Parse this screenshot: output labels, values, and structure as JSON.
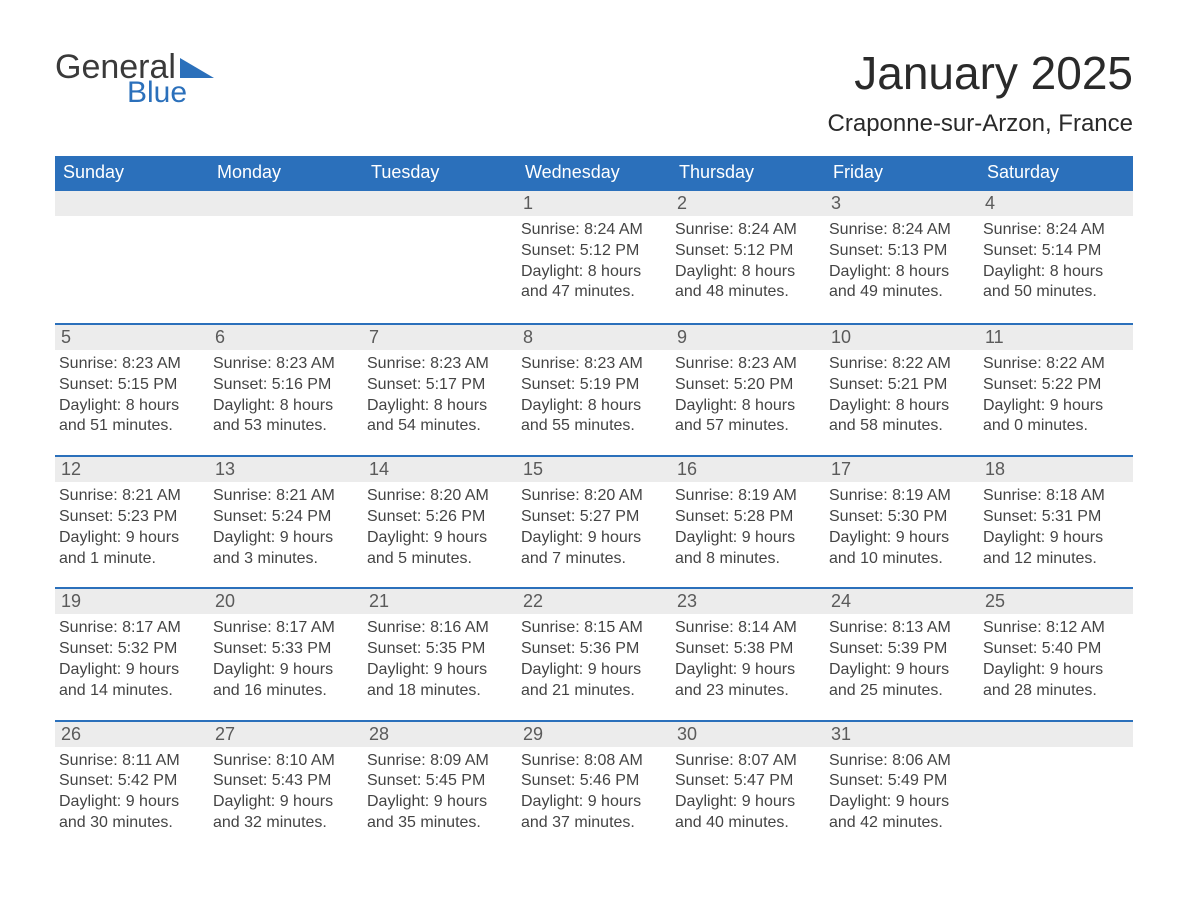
{
  "branding": {
    "logo_general": "General",
    "logo_blue": "Blue",
    "logo_color_general": "#3a3a3a",
    "logo_color_blue": "#2b70bb",
    "logo_triangle_color": "#2b70bb"
  },
  "header": {
    "title": "January 2025",
    "subtitle": "Craponne-sur-Arzon, France"
  },
  "styling": {
    "header_bg": "#2b70bb",
    "header_text": "#ffffff",
    "daynum_bg": "#ececec",
    "daynum_border": "#2b70bb",
    "daynum_text": "#5a5a5a",
    "body_text": "#444444",
    "page_bg": "#ffffff",
    "header_fontsize_pt": 14,
    "title_fontsize_pt": 34,
    "subtitle_fontsize_pt": 18,
    "cell_fontsize_pt": 12
  },
  "calendar": {
    "day_names": [
      "Sunday",
      "Monday",
      "Tuesday",
      "Wednesday",
      "Thursday",
      "Friday",
      "Saturday"
    ],
    "weeks": [
      [
        {
          "day": "",
          "sunrise": "",
          "sunset": "",
          "daylight": ""
        },
        {
          "day": "",
          "sunrise": "",
          "sunset": "",
          "daylight": ""
        },
        {
          "day": "",
          "sunrise": "",
          "sunset": "",
          "daylight": ""
        },
        {
          "day": "1",
          "sunrise": "Sunrise: 8:24 AM",
          "sunset": "Sunset: 5:12 PM",
          "daylight": "Daylight: 8 hours and 47 minutes."
        },
        {
          "day": "2",
          "sunrise": "Sunrise: 8:24 AM",
          "sunset": "Sunset: 5:12 PM",
          "daylight": "Daylight: 8 hours and 48 minutes."
        },
        {
          "day": "3",
          "sunrise": "Sunrise: 8:24 AM",
          "sunset": "Sunset: 5:13 PM",
          "daylight": "Daylight: 8 hours and 49 minutes."
        },
        {
          "day": "4",
          "sunrise": "Sunrise: 8:24 AM",
          "sunset": "Sunset: 5:14 PM",
          "daylight": "Daylight: 8 hours and 50 minutes."
        }
      ],
      [
        {
          "day": "5",
          "sunrise": "Sunrise: 8:23 AM",
          "sunset": "Sunset: 5:15 PM",
          "daylight": "Daylight: 8 hours and 51 minutes."
        },
        {
          "day": "6",
          "sunrise": "Sunrise: 8:23 AM",
          "sunset": "Sunset: 5:16 PM",
          "daylight": "Daylight: 8 hours and 53 minutes."
        },
        {
          "day": "7",
          "sunrise": "Sunrise: 8:23 AM",
          "sunset": "Sunset: 5:17 PM",
          "daylight": "Daylight: 8 hours and 54 minutes."
        },
        {
          "day": "8",
          "sunrise": "Sunrise: 8:23 AM",
          "sunset": "Sunset: 5:19 PM",
          "daylight": "Daylight: 8 hours and 55 minutes."
        },
        {
          "day": "9",
          "sunrise": "Sunrise: 8:23 AM",
          "sunset": "Sunset: 5:20 PM",
          "daylight": "Daylight: 8 hours and 57 minutes."
        },
        {
          "day": "10",
          "sunrise": "Sunrise: 8:22 AM",
          "sunset": "Sunset: 5:21 PM",
          "daylight": "Daylight: 8 hours and 58 minutes."
        },
        {
          "day": "11",
          "sunrise": "Sunrise: 8:22 AM",
          "sunset": "Sunset: 5:22 PM",
          "daylight": "Daylight: 9 hours and 0 minutes."
        }
      ],
      [
        {
          "day": "12",
          "sunrise": "Sunrise: 8:21 AM",
          "sunset": "Sunset: 5:23 PM",
          "daylight": "Daylight: 9 hours and 1 minute."
        },
        {
          "day": "13",
          "sunrise": "Sunrise: 8:21 AM",
          "sunset": "Sunset: 5:24 PM",
          "daylight": "Daylight: 9 hours and 3 minutes."
        },
        {
          "day": "14",
          "sunrise": "Sunrise: 8:20 AM",
          "sunset": "Sunset: 5:26 PM",
          "daylight": "Daylight: 9 hours and 5 minutes."
        },
        {
          "day": "15",
          "sunrise": "Sunrise: 8:20 AM",
          "sunset": "Sunset: 5:27 PM",
          "daylight": "Daylight: 9 hours and 7 minutes."
        },
        {
          "day": "16",
          "sunrise": "Sunrise: 8:19 AM",
          "sunset": "Sunset: 5:28 PM",
          "daylight": "Daylight: 9 hours and 8 minutes."
        },
        {
          "day": "17",
          "sunrise": "Sunrise: 8:19 AM",
          "sunset": "Sunset: 5:30 PM",
          "daylight": "Daylight: 9 hours and 10 minutes."
        },
        {
          "day": "18",
          "sunrise": "Sunrise: 8:18 AM",
          "sunset": "Sunset: 5:31 PM",
          "daylight": "Daylight: 9 hours and 12 minutes."
        }
      ],
      [
        {
          "day": "19",
          "sunrise": "Sunrise: 8:17 AM",
          "sunset": "Sunset: 5:32 PM",
          "daylight": "Daylight: 9 hours and 14 minutes."
        },
        {
          "day": "20",
          "sunrise": "Sunrise: 8:17 AM",
          "sunset": "Sunset: 5:33 PM",
          "daylight": "Daylight: 9 hours and 16 minutes."
        },
        {
          "day": "21",
          "sunrise": "Sunrise: 8:16 AM",
          "sunset": "Sunset: 5:35 PM",
          "daylight": "Daylight: 9 hours and 18 minutes."
        },
        {
          "day": "22",
          "sunrise": "Sunrise: 8:15 AM",
          "sunset": "Sunset: 5:36 PM",
          "daylight": "Daylight: 9 hours and 21 minutes."
        },
        {
          "day": "23",
          "sunrise": "Sunrise: 8:14 AM",
          "sunset": "Sunset: 5:38 PM",
          "daylight": "Daylight: 9 hours and 23 minutes."
        },
        {
          "day": "24",
          "sunrise": "Sunrise: 8:13 AM",
          "sunset": "Sunset: 5:39 PM",
          "daylight": "Daylight: 9 hours and 25 minutes."
        },
        {
          "day": "25",
          "sunrise": "Sunrise: 8:12 AM",
          "sunset": "Sunset: 5:40 PM",
          "daylight": "Daylight: 9 hours and 28 minutes."
        }
      ],
      [
        {
          "day": "26",
          "sunrise": "Sunrise: 8:11 AM",
          "sunset": "Sunset: 5:42 PM",
          "daylight": "Daylight: 9 hours and 30 minutes."
        },
        {
          "day": "27",
          "sunrise": "Sunrise: 8:10 AM",
          "sunset": "Sunset: 5:43 PM",
          "daylight": "Daylight: 9 hours and 32 minutes."
        },
        {
          "day": "28",
          "sunrise": "Sunrise: 8:09 AM",
          "sunset": "Sunset: 5:45 PM",
          "daylight": "Daylight: 9 hours and 35 minutes."
        },
        {
          "day": "29",
          "sunrise": "Sunrise: 8:08 AM",
          "sunset": "Sunset: 5:46 PM",
          "daylight": "Daylight: 9 hours and 37 minutes."
        },
        {
          "day": "30",
          "sunrise": "Sunrise: 8:07 AM",
          "sunset": "Sunset: 5:47 PM",
          "daylight": "Daylight: 9 hours and 40 minutes."
        },
        {
          "day": "31",
          "sunrise": "Sunrise: 8:06 AM",
          "sunset": "Sunset: 5:49 PM",
          "daylight": "Daylight: 9 hours and 42 minutes."
        },
        {
          "day": "",
          "sunrise": "",
          "sunset": "",
          "daylight": ""
        }
      ]
    ]
  }
}
